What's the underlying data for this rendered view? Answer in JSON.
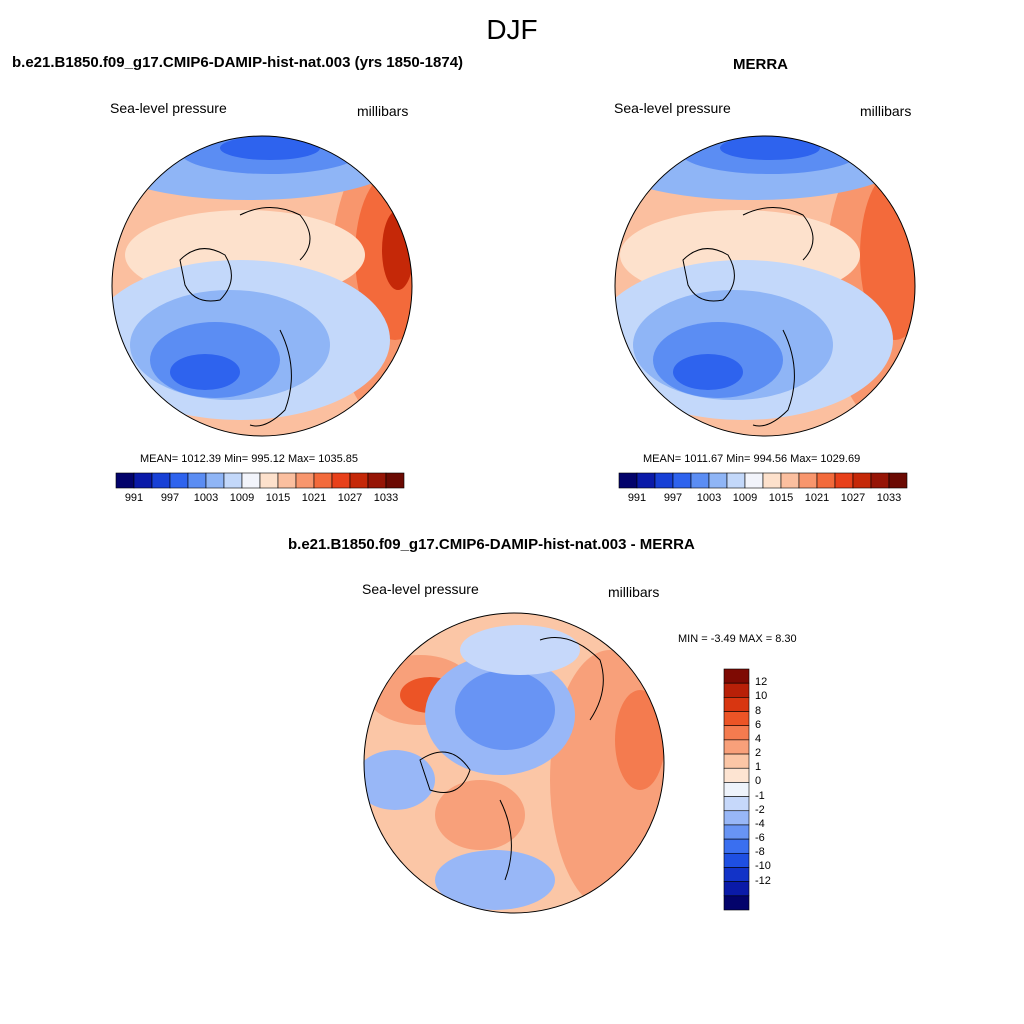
{
  "figure": {
    "season": "DJF"
  },
  "panels": {
    "model": {
      "title": "b.e21.B1850.f09_g17.CMIP6-DAMIP-hist-nat.003 (yrs 1850-1874)",
      "variable": "Sea-level pressure",
      "units": "millibars",
      "stats": "MEAN= 1012.39  Min= 995.12  Max= 1035.85"
    },
    "obs": {
      "title": "MERRA",
      "variable": "Sea-level pressure",
      "units": "millibars",
      "stats": "MEAN= 1011.67  Min= 994.56  Max= 1029.69"
    },
    "diff": {
      "title": "b.e21.B1850.f09_g17.CMIP6-DAMIP-hist-nat.003 - MERRA",
      "variable": "Sea-level pressure",
      "units": "millibars",
      "stats": "MIN =  -3.49 MAX =   8.30"
    }
  },
  "colorbars": {
    "pressure": {
      "colors": [
        "#03036b",
        "#0a1aa8",
        "#1740d6",
        "#2e63ee",
        "#5b8df3",
        "#8fb5f6",
        "#c3d8fa",
        "#f2f4fb",
        "#fde1cc",
        "#fbbf9f",
        "#f8966d",
        "#f36a3b",
        "#e8401a",
        "#c52808",
        "#961506",
        "#6b0a03"
      ],
      "tick_labels": [
        "991",
        "997",
        "1003",
        "1009",
        "1015",
        "1021",
        "1027",
        "1033"
      ]
    },
    "difference": {
      "colors": [
        "#03036b",
        "#0a1aa8",
        "#1233c8",
        "#1e4fe2",
        "#3a6ff0",
        "#6894f4",
        "#98b7f7",
        "#c6d8fa",
        "#eef3fb",
        "#fde4d2",
        "#fbc6a6",
        "#f8a07a",
        "#f47b4f",
        "#ec5426",
        "#d83611",
        "#b82008",
        "#7e0a03"
      ],
      "tick_labels": [
        "12",
        "10",
        "8",
        "6",
        "4",
        "2",
        "1",
        "0",
        "-1",
        "-2",
        "-4",
        "-6",
        "-8",
        "-10",
        "-12"
      ]
    }
  }
}
